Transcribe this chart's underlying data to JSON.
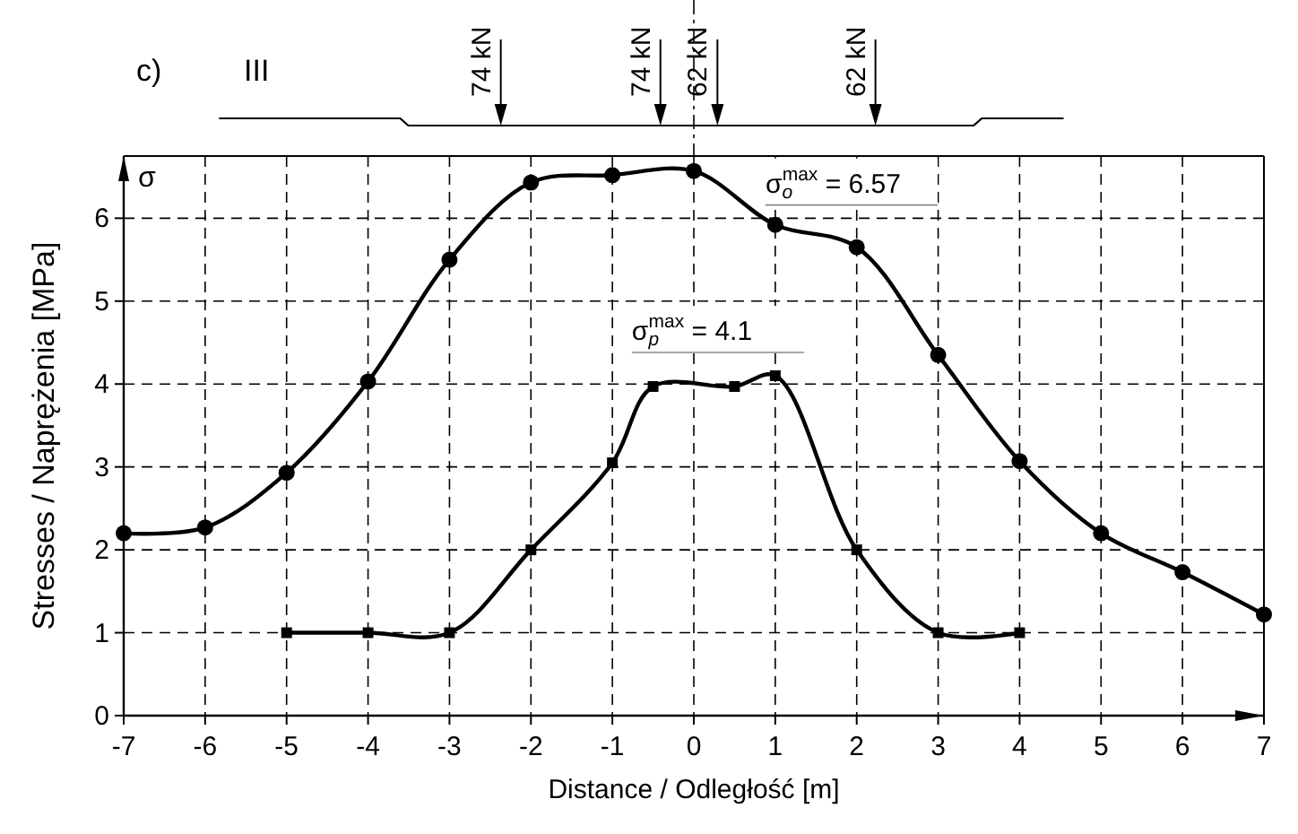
{
  "chart_data": {
    "type": "line",
    "xlabel": "Distance / Odległość [m]",
    "ylabel": "Stresses / Naprężenia [MPa]",
    "xlim": [
      -7,
      7
    ],
    "xticks": [
      -7,
      -6,
      -5,
      -4,
      -3,
      -2,
      -1,
      0,
      1,
      2,
      3,
      4,
      5,
      6,
      7
    ],
    "ylim": [
      0,
      6.75
    ],
    "yticks": [
      0,
      1,
      2,
      3,
      4,
      5,
      6
    ],
    "grid": true,
    "line_style": "solid",
    "series": [
      {
        "color": "#000000",
        "marker": "circle",
        "x": [
          -7,
          -6,
          -5,
          -4,
          -3,
          -2,
          -1,
          0,
          1,
          2,
          3,
          4,
          5,
          6,
          7
        ],
        "values": [
          2.2,
          2.27,
          2.93,
          4.03,
          5.5,
          6.43,
          6.52,
          6.57,
          5.92,
          5.65,
          4.35,
          3.07,
          2.2,
          1.73,
          1.22
        ]
      },
      {
        "color": "#000000",
        "marker": "square",
        "x": [
          -5,
          -4,
          -3,
          -2,
          -1,
          -0.5,
          0.5,
          1,
          2,
          3,
          4
        ],
        "values": [
          1,
          1,
          1,
          2,
          3.05,
          3.97,
          3.97,
          4.1,
          2,
          1,
          1
        ]
      }
    ],
    "annotations": [
      {
        "text": "σ$_{o}$$^{max}$ = 6.57",
        "x": 0,
        "y": 6.57
      },
      {
        "text": "σ$_{p}$$^{max}$ = 4.1",
        "x": 1,
        "y": 4.1
      },
      "c)",
      "III",
      "σ",
      "74 kN",
      "74 kN",
      "62 kN",
      "62 kN"
    ]
  }
}
